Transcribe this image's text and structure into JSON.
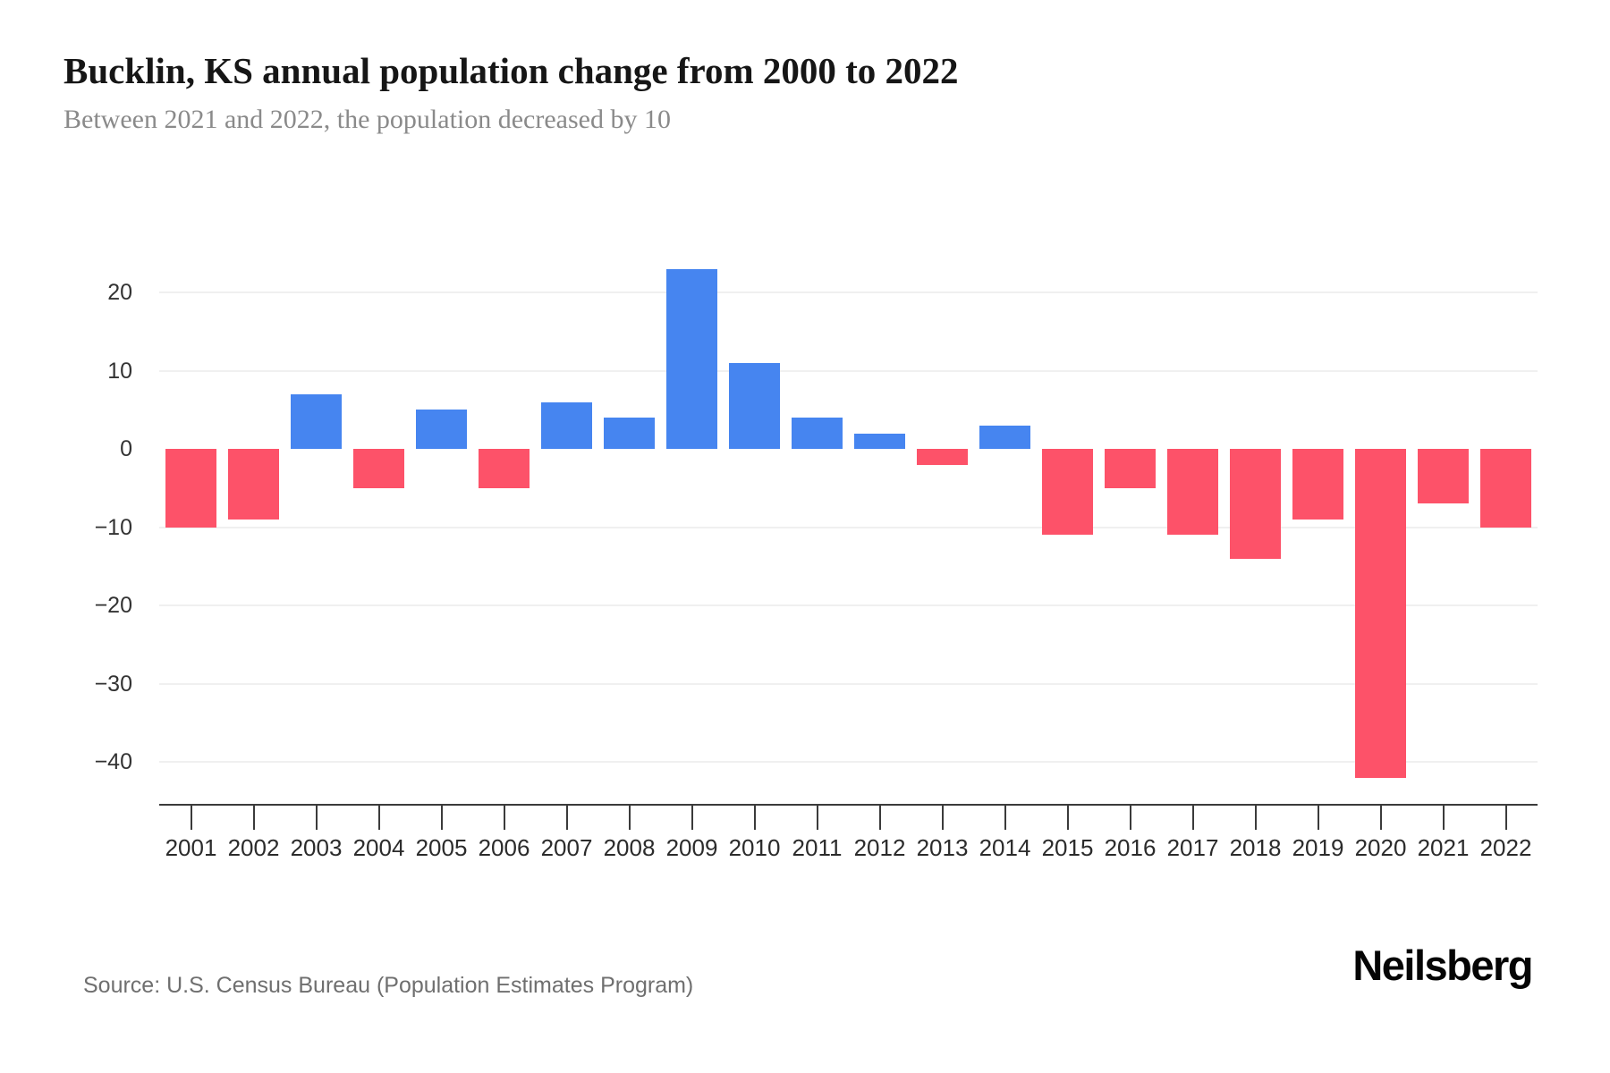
{
  "page": {
    "title": "Bucklin, KS annual population change from 2000 to 2022",
    "subtitle": "Between 2021 and 2022, the population decreased by 10",
    "source": "Source: U.S. Census Bureau (Population Estimates Program)",
    "brand": "Neilsberg"
  },
  "chart_data": {
    "type": "bar",
    "title": "Bucklin, KS annual population change from 2000 to 2022",
    "subtitle": "Between 2021 and 2022, the population decreased by 10",
    "categories": [
      "2001",
      "2002",
      "2003",
      "2004",
      "2005",
      "2006",
      "2007",
      "2008",
      "2009",
      "2010",
      "2011",
      "2012",
      "2013",
      "2014",
      "2015",
      "2016",
      "2017",
      "2018",
      "2019",
      "2020",
      "2021",
      "2022"
    ],
    "values": [
      -10,
      -9,
      7,
      -5,
      5,
      -5,
      6,
      4,
      23,
      11,
      4,
      2,
      -2,
      3,
      -11,
      -5,
      -11,
      -14,
      -9,
      -42,
      -7,
      -10
    ],
    "xlabel": "",
    "ylabel": "",
    "ylim": [
      -45,
      28
    ],
    "yticks": [
      {
        "value": 20,
        "label": "20"
      },
      {
        "value": 10,
        "label": "10"
      },
      {
        "value": 0,
        "label": "0"
      },
      {
        "value": -10,
        "label": "−10"
      },
      {
        "value": -20,
        "label": "−20"
      },
      {
        "value": -30,
        "label": "−30"
      },
      {
        "value": -40,
        "label": "−40"
      }
    ],
    "grid": "horizontal-only, zero line hidden",
    "legend": "none",
    "colors": {
      "positive": "#4685F0",
      "negative": "#FD5269",
      "gridline": "#f0f0f0",
      "axis": "#3b3b3b"
    }
  }
}
